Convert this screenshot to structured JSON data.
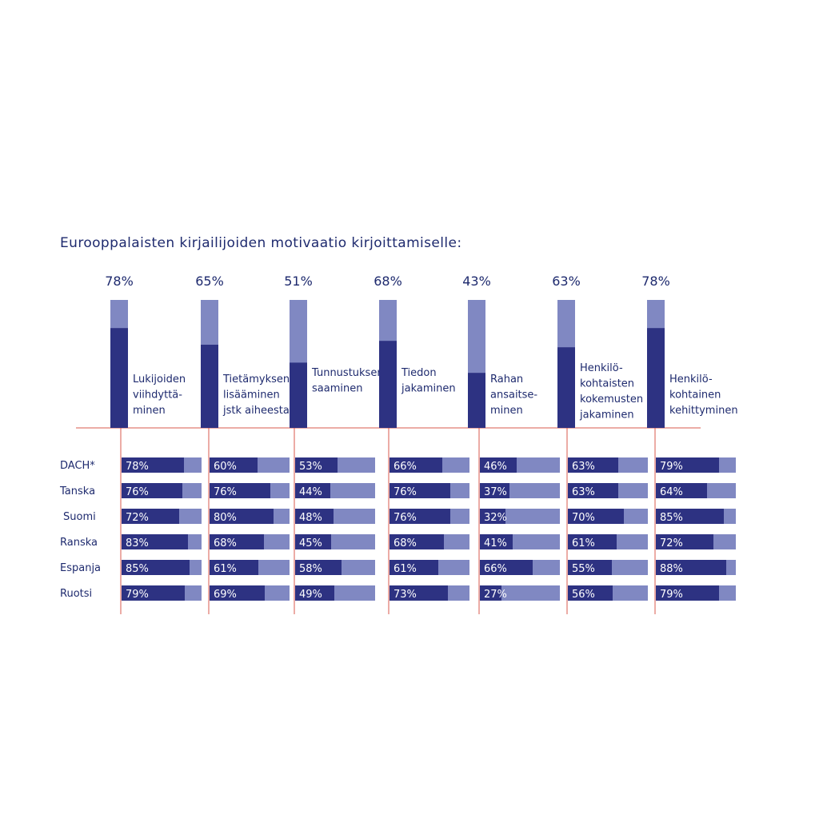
{
  "colors": {
    "dark": "#2d3282",
    "light": "#8088c2",
    "axis": "#d9584c",
    "text": "#1e2a6e"
  },
  "chart_data": {
    "type": "bar",
    "title": "Eurooppalaisten kirjailijoiden motivaatio kirjoittamiselle:",
    "categories": [
      [
        "Lukijoiden",
        "viihdyttä-",
        "minen"
      ],
      [
        "Tietämyksen",
        "lisääminen",
        "jstk aiheesta"
      ],
      [
        "Tunnustuksen",
        "saaminen"
      ],
      [
        "Tiedon",
        "jakaminen"
      ],
      [
        "Rahan",
        "ansaitse-",
        "minen"
      ],
      [
        "Henkilö-",
        "kohtaisten",
        "kokemusten",
        "jakaminen"
      ],
      [
        "Henkilö-",
        "kohtainen",
        "kehittyminen"
      ]
    ],
    "totals": [
      78,
      65,
      51,
      68,
      43,
      63,
      78
    ],
    "totals_labels": [
      "78%",
      "65%",
      "51%",
      "68%",
      "43%",
      "63%",
      "78%"
    ],
    "rows": [
      {
        "name": "DACH*",
        "values": [
          78,
          60,
          53,
          66,
          46,
          63,
          79
        ]
      },
      {
        "name": "Tanska",
        "values": [
          76,
          76,
          44,
          76,
          37,
          63,
          64
        ]
      },
      {
        "name": "Suomi",
        "values": [
          72,
          80,
          48,
          76,
          32,
          70,
          85
        ]
      },
      {
        "name": "Ranska",
        "values": [
          83,
          68,
          45,
          68,
          41,
          61,
          72
        ]
      },
      {
        "name": "Espanja",
        "values": [
          85,
          61,
          58,
          61,
          66,
          55,
          88
        ]
      },
      {
        "name": "Ruotsi",
        "values": [
          79,
          69,
          49,
          73,
          27,
          56,
          79
        ]
      }
    ]
  }
}
